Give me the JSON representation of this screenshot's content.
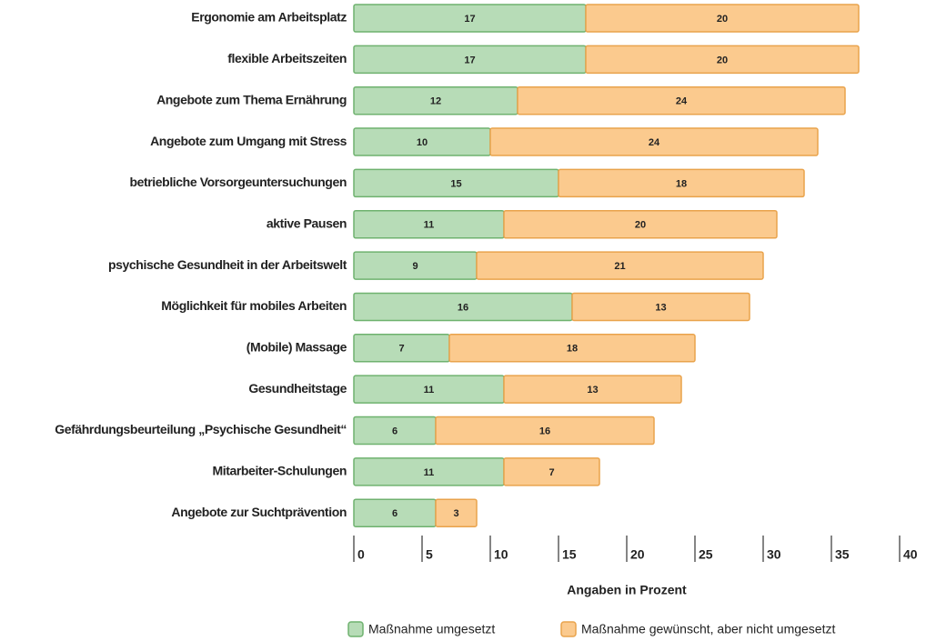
{
  "chart_data": {
    "type": "stacked-bar-horizontal",
    "categories": [
      "Ergonomie am Arbeitsplatz",
      "flexible Arbeitszeiten",
      "Angebote zum Thema Ernährung",
      "Angebote zum Umgang mit Stress",
      "betriebliche Vorsorgeuntersuchungen",
      "aktive Pausen",
      "psychische Gesundheit in der Arbeitswelt",
      "Möglichkeit für mobiles Arbeiten",
      "(Mobile) Massage",
      "Gesundheitstage",
      "Gefährdungsbeurteilung „Psychische Gesundheit“",
      "Mitarbeiter-Schulungen",
      "Angebote zur Suchtprävention"
    ],
    "series": [
      {
        "name": "Maßnahme umgesetzt",
        "color": "#b7dcb7",
        "stroke": "#6fb26f",
        "values": [
          17,
          17,
          12,
          10,
          15,
          11,
          9,
          16,
          7,
          11,
          6,
          11,
          6
        ]
      },
      {
        "name": "Maßnahme gewünscht, aber nicht umgesetzt",
        "color": "#fbca8e",
        "stroke": "#e9a34c",
        "values": [
          20,
          20,
          24,
          24,
          18,
          20,
          21,
          13,
          18,
          13,
          16,
          7,
          3
        ]
      }
    ],
    "xlim": [
      0,
      40
    ],
    "xticks": [
      0,
      5,
      10,
      15,
      20,
      25,
      30,
      35,
      40
    ],
    "xlabel": "Angaben in Prozent"
  }
}
